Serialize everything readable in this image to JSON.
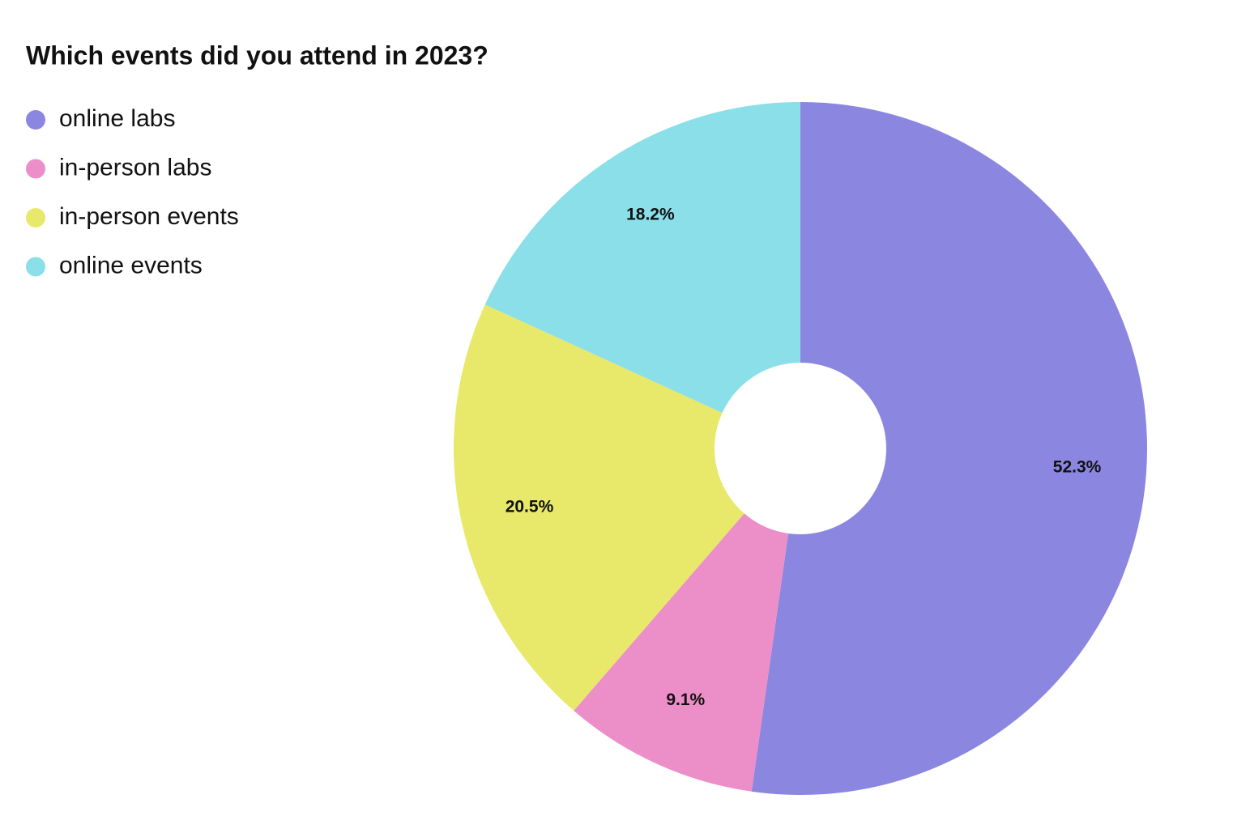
{
  "chart_data": {
    "type": "donut",
    "title": "Which events did you attend in 2023?",
    "categories": [
      "online labs",
      "in-person labs",
      "in-person events",
      "online events"
    ],
    "values": [
      52.3,
      9.1,
      20.5,
      18.2
    ],
    "value_labels": [
      "52.3%",
      "9.1%",
      "20.5%",
      "18.2%"
    ],
    "colors": [
      "#8b86e0",
      "#ec8fc8",
      "#e8e86a",
      "#8adfe9"
    ],
    "legend": "top-left"
  }
}
